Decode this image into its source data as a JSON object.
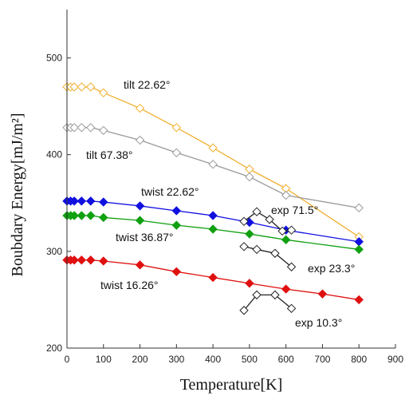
{
  "chart_data": {
    "type": "line",
    "title": "",
    "xlabel": "Temperature[K]",
    "ylabel": "Boubdary Energy[mJ/m²]",
    "xlim": [
      0,
      900
    ],
    "ylim": [
      200,
      550
    ],
    "xticks": [
      0,
      100,
      200,
      300,
      400,
      500,
      600,
      700,
      800,
      900
    ],
    "yticks": [
      200,
      300,
      400,
      500
    ],
    "grid": false,
    "series": [
      {
        "name": "tilt 22.62°",
        "color": "#f0b030",
        "marker": "open-diamond",
        "x": [
          0,
          10,
          20,
          40,
          65,
          100,
          200,
          300,
          400,
          500,
          600,
          800
        ],
        "y": [
          470,
          470,
          470,
          470,
          470,
          464,
          448,
          428,
          407,
          385,
          365,
          315
        ]
      },
      {
        "name": "tilt 67.38°",
        "color": "#999999",
        "marker": "open-diamond",
        "x": [
          0,
          10,
          20,
          40,
          65,
          100,
          200,
          300,
          400,
          500,
          600,
          800
        ],
        "y": [
          428,
          428,
          428,
          428,
          428,
          425,
          415,
          402,
          390,
          377,
          358,
          345
        ]
      },
      {
        "name": "twist 22.62°",
        "color": "#1010e0",
        "marker": "filled-diamond",
        "x": [
          0,
          10,
          20,
          40,
          65,
          100,
          200,
          300,
          400,
          500,
          600,
          800
        ],
        "y": [
          352,
          352,
          352,
          352,
          352,
          351,
          347,
          342,
          337,
          330,
          322,
          310
        ]
      },
      {
        "name": "twist 36.87°",
        "color": "#10a010",
        "marker": "filled-diamond",
        "x": [
          0,
          10,
          20,
          40,
          65,
          100,
          200,
          300,
          400,
          500,
          600,
          800
        ],
        "y": [
          337,
          337,
          337,
          337,
          337,
          335,
          332,
          327,
          323,
          318,
          312,
          302
        ]
      },
      {
        "name": "twist 16.26°",
        "color": "#e01010",
        "marker": "filled-diamond",
        "x": [
          0,
          10,
          20,
          40,
          65,
          100,
          200,
          300,
          400,
          500,
          600,
          700,
          800
        ],
        "y": [
          291,
          291,
          291,
          291,
          291,
          290,
          286,
          279,
          273,
          267,
          261,
          256,
          250
        ]
      },
      {
        "name": "exp 71.5°",
        "color": "#222222",
        "marker": "open-diamond",
        "x": [
          485,
          520,
          555,
          590,
          615
        ],
        "y": [
          331,
          341,
          333,
          321,
          322
        ]
      },
      {
        "name": "exp 23.3°",
        "color": "#222222",
        "marker": "open-diamond",
        "x": [
          485,
          520,
          570,
          615
        ],
        "y": [
          305,
          302,
          298,
          284
        ]
      },
      {
        "name": "exp 10.3°",
        "color": "#222222",
        "marker": "open-diamond",
        "x": [
          485,
          520,
          570,
          615
        ],
        "y": [
          239,
          255,
          255,
          241
        ]
      }
    ]
  }
}
